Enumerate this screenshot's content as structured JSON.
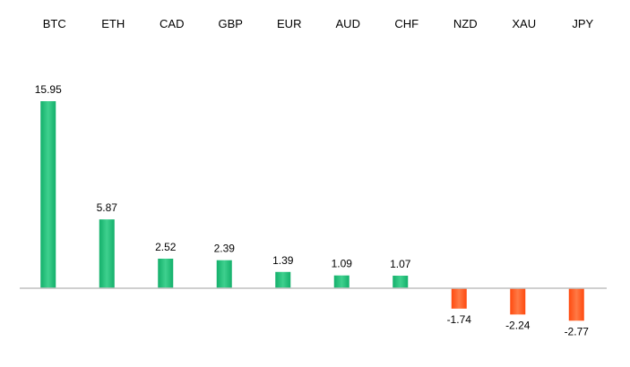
{
  "chart_data": {
    "type": "bar",
    "categories": [
      "BTC",
      "ETH",
      "CAD",
      "GBP",
      "EUR",
      "AUD",
      "CHF",
      "NZD",
      "XAU",
      "JPY"
    ],
    "values": [
      15.95,
      5.87,
      2.52,
      2.39,
      1.39,
      1.09,
      1.07,
      -1.74,
      -2.24,
      -2.77
    ],
    "value_labels": [
      "15.95",
      "5.87",
      "2.52",
      "2.39",
      "1.39",
      "1.09",
      "1.07",
      "-1.74",
      "-2.24",
      "-2.77"
    ],
    "title": "",
    "xlabel": "",
    "ylabel": "",
    "category_axis_position": "top",
    "grid": false,
    "legend": "none",
    "colors": {
      "positive": "#13b06b",
      "positive_light": "#3fd08e",
      "negative": "#ff4a0f",
      "negative_light": "#ff7a45",
      "axis": "#bfbfbf"
    }
  }
}
